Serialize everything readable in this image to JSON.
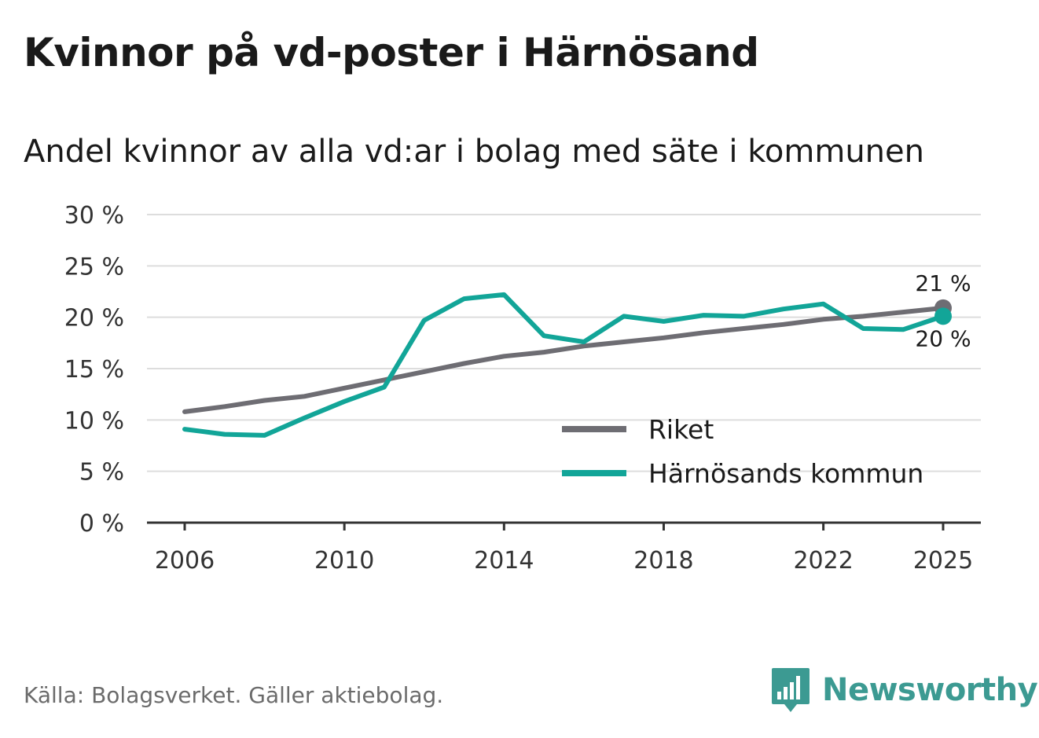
{
  "header": {
    "title": "Kvinnor på vd-poster i Härnösand",
    "subtitle": "Andel kvinnor av alla vd:ar i bolag med säte i kommunen"
  },
  "footer": {
    "source": "Källa: Bolagsverket. Gäller aktiebolag.",
    "brand": "Newsworthy",
    "brand_color": "#3c9a92"
  },
  "chart_data": {
    "type": "line",
    "title": "Kvinnor på vd-poster i Härnösand",
    "subtitle": "Andel kvinnor av alla vd:ar i bolag med säte i kommunen",
    "xlabel": "",
    "ylabel": "",
    "x": [
      2006,
      2007,
      2008,
      2009,
      2010,
      2011,
      2012,
      2013,
      2014,
      2015,
      2016,
      2017,
      2018,
      2019,
      2020,
      2021,
      2022,
      2023,
      2024,
      2025
    ],
    "ylim": [
      0,
      30
    ],
    "yticks": [
      0,
      5,
      10,
      15,
      20,
      25,
      30
    ],
    "ytick_labels": [
      "0 %",
      "5 %",
      "10 %",
      "15 %",
      "20 %",
      "25 %",
      "30 %"
    ],
    "xticks": [
      2006,
      2010,
      2014,
      2018,
      2022,
      2025
    ],
    "xtick_labels": [
      "2006",
      "2010",
      "2014",
      "2018",
      "2022",
      "2025"
    ],
    "grid": true,
    "legend_position": "bottom-right",
    "series": [
      {
        "name": "Riket",
        "color": "#6e6d73",
        "values": [
          10.8,
          11.3,
          11.9,
          12.3,
          13.1,
          13.9,
          14.7,
          15.5,
          16.2,
          16.6,
          17.2,
          17.6,
          18.0,
          18.5,
          18.9,
          19.3,
          19.8,
          20.1,
          20.5,
          20.9
        ],
        "end_label": "21 %"
      },
      {
        "name": "Härnösands kommun",
        "color": "#12a598",
        "values": [
          9.1,
          8.6,
          8.5,
          10.2,
          11.8,
          13.2,
          19.7,
          21.8,
          22.2,
          18.2,
          17.6,
          20.1,
          19.6,
          20.2,
          20.1,
          20.8,
          21.3,
          18.9,
          18.8,
          20.1
        ],
        "end_label": "20 %"
      }
    ]
  }
}
